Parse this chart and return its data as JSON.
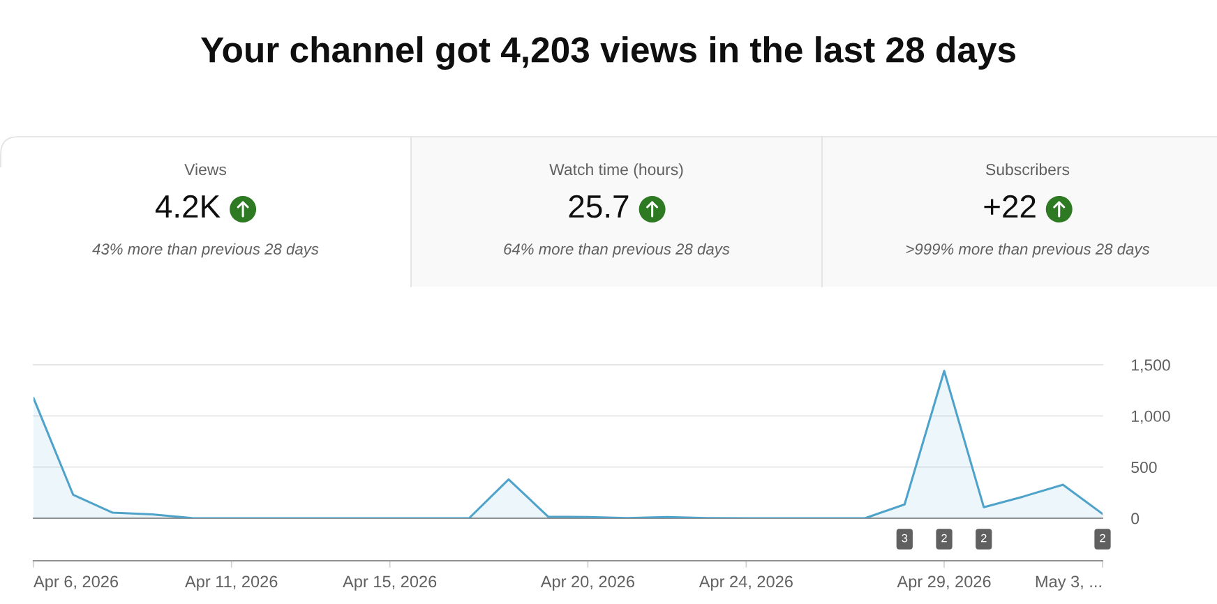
{
  "chart_data": [
    {
      "type": "other",
      "title": "Your channel got 4,203 views in the last 28 days",
      "annotations": [
        "Views",
        "4.2K",
        "43% more than previous 28 days",
        "Watch time (hours)",
        "25.7",
        "64% more than previous 28 days",
        "Subscribers",
        "+22",
        ">999% more than previous 28 days"
      ]
    },
    {
      "type": "area",
      "color": "#4fa3cb",
      "x": [
        "2026-04-06",
        "2026-04-07",
        "2026-04-08",
        "2026-04-09",
        "2026-04-10",
        "2026-04-11",
        "2026-04-12",
        "2026-04-13",
        "2026-04-14",
        "2026-04-15",
        "2026-04-16",
        "2026-04-17",
        "2026-04-18",
        "2026-04-19",
        "2026-04-20",
        "2026-04-21",
        "2026-04-22",
        "2026-04-23",
        "2026-04-24",
        "2026-04-25",
        "2026-04-26",
        "2026-04-27",
        "2026-04-28",
        "2026-04-29",
        "2026-04-30",
        "2026-05-01",
        "2026-05-02",
        "2026-05-03"
      ],
      "values": [
        1175,
        230,
        54,
        38,
        2,
        0,
        0,
        0,
        0,
        0,
        0,
        0,
        379,
        15,
        12,
        2,
        12,
        2,
        0,
        0,
        0,
        0,
        135,
        1440,
        108,
        212,
        327,
        42
      ],
      "xlim": [
        "2026-04-06",
        "2026-05-03"
      ],
      "xticks": [
        {
          "value": "2026-04-06",
          "label": "Apr 6, 2026"
        },
        {
          "value": "2026-04-11",
          "label": "Apr 11, 2026"
        },
        {
          "value": "2026-04-15",
          "label": "Apr 15, 2026"
        },
        {
          "value": "2026-04-20",
          "label": "Apr 20, 2026"
        },
        {
          "value": "2026-04-24",
          "label": "Apr 24, 2026"
        },
        {
          "value": "2026-04-29",
          "label": "Apr 29, 2026"
        },
        {
          "value": "2026-05-03",
          "label": "May 3, ..."
        }
      ],
      "ylim": [
        0,
        1500
      ],
      "yticks": [
        0,
        500,
        {
          "value": 1000,
          "label": "1,000"
        },
        {
          "value": 1500,
          "label": "1,500"
        }
      ],
      "grid": "y",
      "annotations": [
        {
          "text": "3",
          "x": "2026-04-28",
          "y": 0
        },
        {
          "text": "2",
          "x": "2026-04-29",
          "y": 0
        },
        {
          "text": "2",
          "x": "2026-04-30",
          "y": 0
        },
        {
          "text": "2",
          "x": "2026-05-03",
          "y": 0
        }
      ]
    }
  ]
}
